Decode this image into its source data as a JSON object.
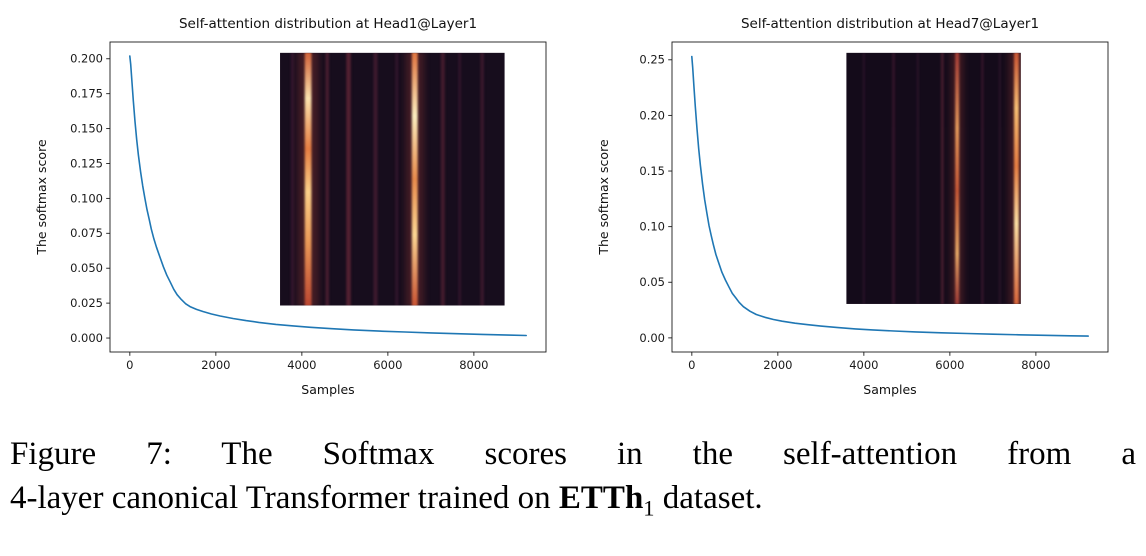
{
  "caption": {
    "line1": "Figure 7: The Softmax scores in the self-attention from a",
    "line2_pre": "4-layer canonical Transformer trained on ",
    "line2_bold": "ETTh",
    "line2_sub": "1",
    "line2_post": " dataset."
  },
  "chart_data": [
    {
      "type": "line",
      "title": "Self-attention distribution at Head1@Layer1",
      "xlabel": "Samples",
      "ylabel": "The softmax score",
      "grid": false,
      "legend": false,
      "line_color": "#1f77b4",
      "xlim": [
        -461,
        9677
      ],
      "ylim": [
        -0.01,
        0.212
      ],
      "xticks": [
        0,
        2000,
        4000,
        6000,
        8000
      ],
      "yticks": [
        {
          "v": 0.0,
          "label": "0.000"
        },
        {
          "v": 0.025,
          "label": "0.025"
        },
        {
          "v": 0.05,
          "label": "0.050"
        },
        {
          "v": 0.075,
          "label": "0.075"
        },
        {
          "v": 0.1,
          "label": "0.100"
        },
        {
          "v": 0.125,
          "label": "0.125"
        },
        {
          "v": 0.15,
          "label": "0.150"
        },
        {
          "v": 0.175,
          "label": "0.175"
        },
        {
          "v": 0.2,
          "label": "0.200"
        }
      ],
      "points": [
        [
          0,
          0.202
        ],
        [
          20,
          0.196
        ],
        [
          50,
          0.183
        ],
        [
          80,
          0.17
        ],
        [
          120,
          0.155
        ],
        [
          160,
          0.142
        ],
        [
          200,
          0.131
        ],
        [
          250,
          0.119
        ],
        [
          300,
          0.109
        ],
        [
          350,
          0.1
        ],
        [
          400,
          0.092
        ],
        [
          450,
          0.085
        ],
        [
          500,
          0.078
        ],
        [
          560,
          0.071
        ],
        [
          620,
          0.065
        ],
        [
          700,
          0.058
        ],
        [
          780,
          0.051
        ],
        [
          860,
          0.045
        ],
        [
          940,
          0.04
        ],
        [
          1020,
          0.035
        ],
        [
          1100,
          0.031
        ],
        [
          1200,
          0.0275
        ],
        [
          1300,
          0.0245
        ],
        [
          1400,
          0.0225
        ],
        [
          1550,
          0.0205
        ],
        [
          1700,
          0.019
        ],
        [
          1900,
          0.0172
        ],
        [
          2100,
          0.0158
        ],
        [
          2400,
          0.014
        ],
        [
          2700,
          0.0125
        ],
        [
          3000,
          0.0112
        ],
        [
          3400,
          0.0098
        ],
        [
          3800,
          0.0087
        ],
        [
          4200,
          0.0077
        ],
        [
          4700,
          0.0067
        ],
        [
          5200,
          0.0058
        ],
        [
          5800,
          0.005
        ],
        [
          6400,
          0.0043
        ],
        [
          7000,
          0.0037
        ],
        [
          7600,
          0.0031
        ],
        [
          8200,
          0.0026
        ],
        [
          8800,
          0.0021
        ],
        [
          9216,
          0.0018
        ]
      ],
      "inset": {
        "x0": 0.39,
        "y0": 0.035,
        "x1": 0.905,
        "y1": 0.85,
        "bg": "#170d1d",
        "stripes": [
          {
            "p": 0.055,
            "w": 0.014,
            "color": "#4e2140",
            "opacity": 0.5
          },
          {
            "p": 0.125,
            "w": 0.03,
            "glow": true,
            "stops": [
              [
                0,
                "#e06a3c",
                0.9
              ],
              [
                0.18,
                "#fce3ae",
                1
              ],
              [
                0.38,
                "#ef8344",
                0.95
              ],
              [
                0.55,
                "#fbd089",
                1
              ],
              [
                0.75,
                "#f4a05a",
                0.95
              ],
              [
                1,
                "#d14f33",
                0.85
              ]
            ]
          },
          {
            "p": 0.21,
            "w": 0.016,
            "color": "#6d2a3e",
            "opacity": 0.55
          },
          {
            "p": 0.305,
            "w": 0.02,
            "color": "#7b2f3f",
            "opacity": 0.6
          },
          {
            "p": 0.425,
            "w": 0.018,
            "color": "#642741",
            "opacity": 0.5
          },
          {
            "p": 0.52,
            "w": 0.014,
            "color": "#50223e",
            "opacity": 0.45
          },
          {
            "p": 0.6,
            "w": 0.026,
            "glow": true,
            "stops": [
              [
                0,
                "#e87a42",
                0.95
              ],
              [
                0.25,
                "#fceebf",
                1
              ],
              [
                0.5,
                "#f0914e",
                0.95
              ],
              [
                0.72,
                "#fcd794",
                1
              ],
              [
                1,
                "#d85c36",
                0.9
              ]
            ]
          },
          {
            "p": 0.725,
            "w": 0.018,
            "color": "#6d2a3e",
            "opacity": 0.5
          },
          {
            "p": 0.8,
            "w": 0.013,
            "color": "#56233f",
            "opacity": 0.4
          },
          {
            "p": 0.9,
            "w": 0.016,
            "color": "#62263f",
            "opacity": 0.45
          }
        ]
      }
    },
    {
      "type": "line",
      "title": "Self-attention distribution at Head7@Layer1",
      "xlabel": "Samples",
      "ylabel": "The softmax score",
      "grid": false,
      "legend": false,
      "line_color": "#1f77b4",
      "xlim": [
        -461,
        9677
      ],
      "ylim": [
        -0.0127,
        0.266
      ],
      "xticks": [
        0,
        2000,
        4000,
        6000,
        8000
      ],
      "yticks": [
        {
          "v": 0.0,
          "label": "0.00"
        },
        {
          "v": 0.05,
          "label": "0.05"
        },
        {
          "v": 0.1,
          "label": "0.10"
        },
        {
          "v": 0.15,
          "label": "0.15"
        },
        {
          "v": 0.2,
          "label": "0.20"
        },
        {
          "v": 0.25,
          "label": "0.25"
        }
      ],
      "points": [
        [
          0,
          0.253
        ],
        [
          20,
          0.243
        ],
        [
          50,
          0.225
        ],
        [
          80,
          0.208
        ],
        [
          120,
          0.188
        ],
        [
          160,
          0.17
        ],
        [
          200,
          0.155
        ],
        [
          250,
          0.138
        ],
        [
          300,
          0.124
        ],
        [
          350,
          0.112
        ],
        [
          400,
          0.101
        ],
        [
          450,
          0.092
        ],
        [
          500,
          0.084
        ],
        [
          560,
          0.075
        ],
        [
          620,
          0.068
        ],
        [
          700,
          0.059
        ],
        [
          780,
          0.052
        ],
        [
          860,
          0.046
        ],
        [
          940,
          0.04
        ],
        [
          1020,
          0.036
        ],
        [
          1100,
          0.032
        ],
        [
          1200,
          0.028
        ],
        [
          1350,
          0.024
        ],
        [
          1500,
          0.021
        ],
        [
          1700,
          0.0185
        ],
        [
          1900,
          0.0165
        ],
        [
          2100,
          0.015
        ],
        [
          2400,
          0.0132
        ],
        [
          2700,
          0.0118
        ],
        [
          3000,
          0.0106
        ],
        [
          3400,
          0.0092
        ],
        [
          3800,
          0.0081
        ],
        [
          4200,
          0.0072
        ],
        [
          4700,
          0.0062
        ],
        [
          5200,
          0.0054
        ],
        [
          5800,
          0.0046
        ],
        [
          6400,
          0.0039
        ],
        [
          7000,
          0.0033
        ],
        [
          7600,
          0.0028
        ],
        [
          8200,
          0.0023
        ],
        [
          8800,
          0.0019
        ],
        [
          9216,
          0.0016
        ]
      ],
      "inset": {
        "x0": 0.4,
        "y0": 0.035,
        "x1": 0.8,
        "y1": 0.845,
        "bg": "#140b1a",
        "stripes": [
          {
            "p": 0.1,
            "w": 0.013,
            "color": "#47203c",
            "opacity": 0.4
          },
          {
            "p": 0.27,
            "w": 0.016,
            "color": "#5a2440",
            "opacity": 0.45
          },
          {
            "p": 0.41,
            "w": 0.013,
            "color": "#4c213e",
            "opacity": 0.4
          },
          {
            "p": 0.55,
            "w": 0.016,
            "color": "#6d2a3e",
            "opacity": 0.55
          },
          {
            "p": 0.635,
            "w": 0.022,
            "glow": true,
            "stops": [
              [
                0,
                "#b8433a",
                0.85
              ],
              [
                0.3,
                "#f2a45f",
                0.95
              ],
              [
                0.55,
                "#d96038",
                0.9
              ],
              [
                0.8,
                "#f4b46b",
                0.95
              ],
              [
                1,
                "#b8433a",
                0.8
              ]
            ]
          },
          {
            "p": 0.78,
            "w": 0.014,
            "color": "#5a2440",
            "opacity": 0.45
          },
          {
            "p": 0.88,
            "w": 0.013,
            "color": "#4c213e",
            "opacity": 0.38
          },
          {
            "p": 0.975,
            "w": 0.028,
            "glow": true,
            "stops": [
              [
                0,
                "#d85c36",
                0.9
              ],
              [
                0.22,
                "#f8c074",
                1
              ],
              [
                0.45,
                "#ef8344",
                0.95
              ],
              [
                0.68,
                "#fde0a4",
                1
              ],
              [
                1,
                "#e06a3c",
                0.95
              ]
            ]
          }
        ]
      }
    }
  ]
}
